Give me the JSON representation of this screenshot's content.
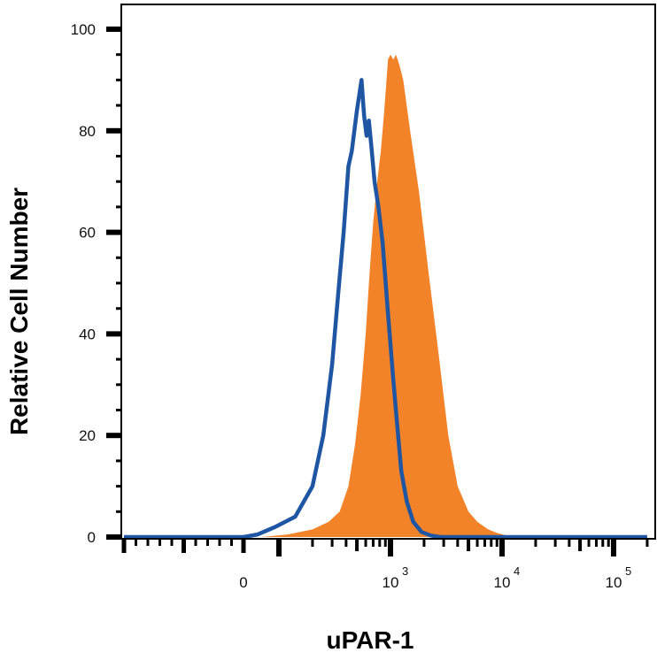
{
  "chart_data": {
    "type": "area",
    "title": "",
    "xlabel": "uPAR-1",
    "ylabel": "Relative Cell Number",
    "x_scale": "biexponential",
    "xlim": [
      -1000,
      200000
    ],
    "ylim": [
      0,
      100
    ],
    "grid": false,
    "legend": "none",
    "y_ticks": [
      {
        "value": 0,
        "label": "0"
      },
      {
        "value": 20,
        "label": "20"
      },
      {
        "value": 40,
        "label": "40"
      },
      {
        "value": 60,
        "label": "60"
      },
      {
        "value": 80,
        "label": "80"
      },
      {
        "value": 100,
        "label": "100"
      }
    ],
    "x_ticks": [
      {
        "value": 0,
        "base": "0",
        "exp": ""
      },
      {
        "value": 1000,
        "base": "10",
        "exp": "3"
      },
      {
        "value": 10000,
        "base": "10",
        "exp": "4"
      },
      {
        "value": 100000,
        "base": "10",
        "exp": "5"
      }
    ],
    "series": [
      {
        "style": "filled",
        "color": "#f28329",
        "points": [
          [
            -1000,
            0
          ],
          [
            50,
            0
          ],
          [
            120,
            0.5
          ],
          [
            200,
            1.5
          ],
          [
            280,
            3
          ],
          [
            350,
            5
          ],
          [
            420,
            10
          ],
          [
            480,
            18
          ],
          [
            540,
            28
          ],
          [
            600,
            40
          ],
          [
            650,
            52
          ],
          [
            700,
            62
          ],
          [
            760,
            70
          ],
          [
            820,
            76
          ],
          [
            880,
            84
          ],
          [
            950,
            94
          ],
          [
            1000,
            95
          ],
          [
            1060,
            94
          ],
          [
            1120,
            95
          ],
          [
            1200,
            93
          ],
          [
            1300,
            90
          ],
          [
            1500,
            80
          ],
          [
            1800,
            68
          ],
          [
            2200,
            52
          ],
          [
            2700,
            36
          ],
          [
            3300,
            20
          ],
          [
            4000,
            10
          ],
          [
            5000,
            5
          ],
          [
            6000,
            3
          ],
          [
            7500,
            1.5
          ],
          [
            9000,
            0.8
          ],
          [
            11000,
            0.3
          ],
          [
            13000,
            0
          ],
          [
            200000,
            0
          ]
        ]
      },
      {
        "style": "line",
        "color": "#1f56a3",
        "points": [
          [
            -1000,
            0
          ],
          [
            0,
            0
          ],
          [
            40,
            0.5
          ],
          [
            90,
            2
          ],
          [
            140,
            4
          ],
          [
            200,
            10
          ],
          [
            250,
            20
          ],
          [
            300,
            34
          ],
          [
            340,
            48
          ],
          [
            380,
            60
          ],
          [
            420,
            73
          ],
          [
            450,
            76
          ],
          [
            500,
            84
          ],
          [
            550,
            90
          ],
          [
            580,
            83
          ],
          [
            610,
            79
          ],
          [
            640,
            82
          ],
          [
            680,
            76
          ],
          [
            720,
            70
          ],
          [
            780,
            65
          ],
          [
            850,
            58
          ],
          [
            950,
            44
          ],
          [
            1050,
            32
          ],
          [
            1150,
            22
          ],
          [
            1250,
            13
          ],
          [
            1400,
            7
          ],
          [
            1600,
            3
          ],
          [
            1900,
            1
          ],
          [
            2300,
            0.3
          ],
          [
            2800,
            0
          ],
          [
            200000,
            0
          ]
        ]
      }
    ]
  }
}
